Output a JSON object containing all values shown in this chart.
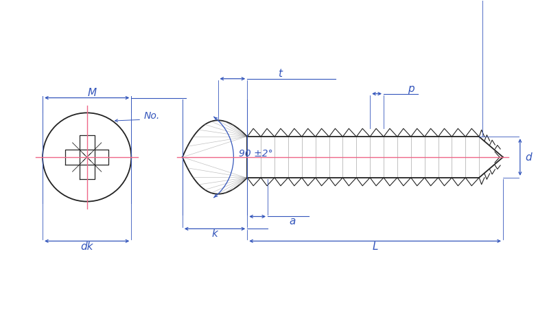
{
  "bg_color": "#ffffff",
  "dim_color": "#3355bb",
  "draw_color": "#222222",
  "pink_color": "#ee6688",
  "gray_color": "#999999",
  "fig_width": 8.0,
  "fig_height": 4.59,
  "labels": {
    "M": "M",
    "No": "No.",
    "t": "t",
    "p": "p",
    "d": "d",
    "a": "a",
    "k": "k",
    "dk": "dk",
    "L": "L",
    "angle": "90 ±2°"
  }
}
